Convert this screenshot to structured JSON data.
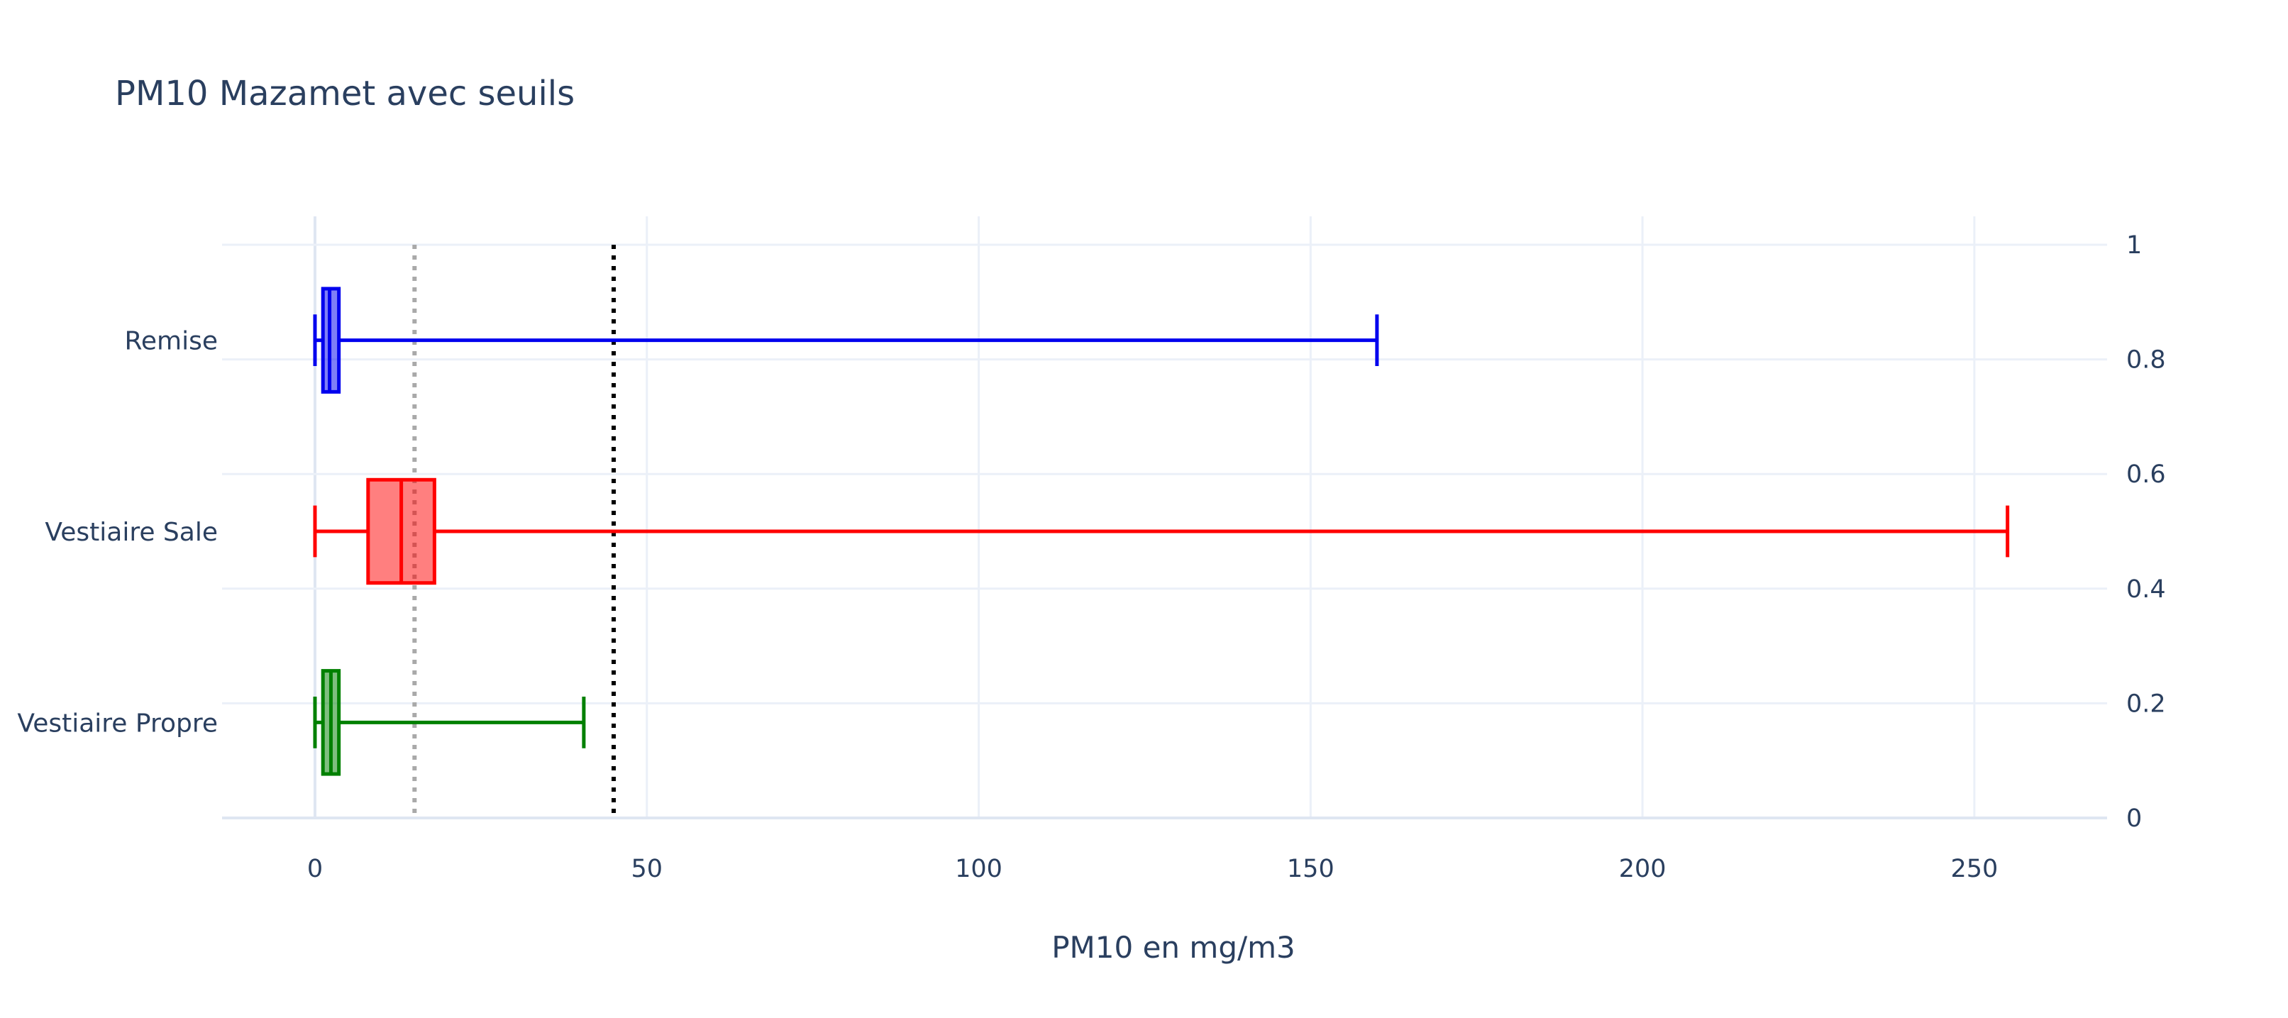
{
  "chart_data": {
    "type": "box",
    "orientation": "horizontal",
    "title": "PM10 Mazamet avec seuils",
    "xlabel": "PM10 en mg/m3",
    "ylabel": "",
    "xlim": [
      -14,
      270
    ],
    "y2lim": [
      0,
      1
    ],
    "x_ticks": [
      0,
      50,
      100,
      150,
      200,
      250
    ],
    "x_tick_labels": [
      "0",
      "50",
      "100",
      "150",
      "200",
      "250"
    ],
    "y2_ticks": [
      0,
      0.2,
      0.4,
      0.6,
      0.8,
      1
    ],
    "y2_tick_labels": [
      "0",
      "0.2",
      "0.4",
      "0.6",
      "0.8",
      "1"
    ],
    "grid": true,
    "legend": "none",
    "categories": [
      "Remise",
      "Vestiaire Sale",
      "Vestiaire Propre"
    ],
    "series": [
      {
        "category": "Remise",
        "color": "#0000ee",
        "fill": "rgba(0,0,238,0.5)",
        "min": 0,
        "q1": 1.2,
        "median": 2.2,
        "q3": 3.6,
        "max": 160
      },
      {
        "category": "Vestiaire Sale",
        "color": "#ff0000",
        "fill": "rgba(255,0,0,0.5)",
        "min": 0,
        "q1": 8,
        "median": 13,
        "q3": 18,
        "max": 255
      },
      {
        "category": "Vestiaire Propre",
        "color": "#008000",
        "fill": "rgba(0,128,0,0.5)",
        "min": 0,
        "q1": 1.2,
        "median": 2.4,
        "q3": 3.6,
        "max": 40.5
      }
    ],
    "threshold_lines": [
      {
        "value": 15,
        "color": "#a9a9a9",
        "style": "dotted"
      },
      {
        "value": 45,
        "color": "#000000",
        "style": "dotted"
      }
    ]
  }
}
